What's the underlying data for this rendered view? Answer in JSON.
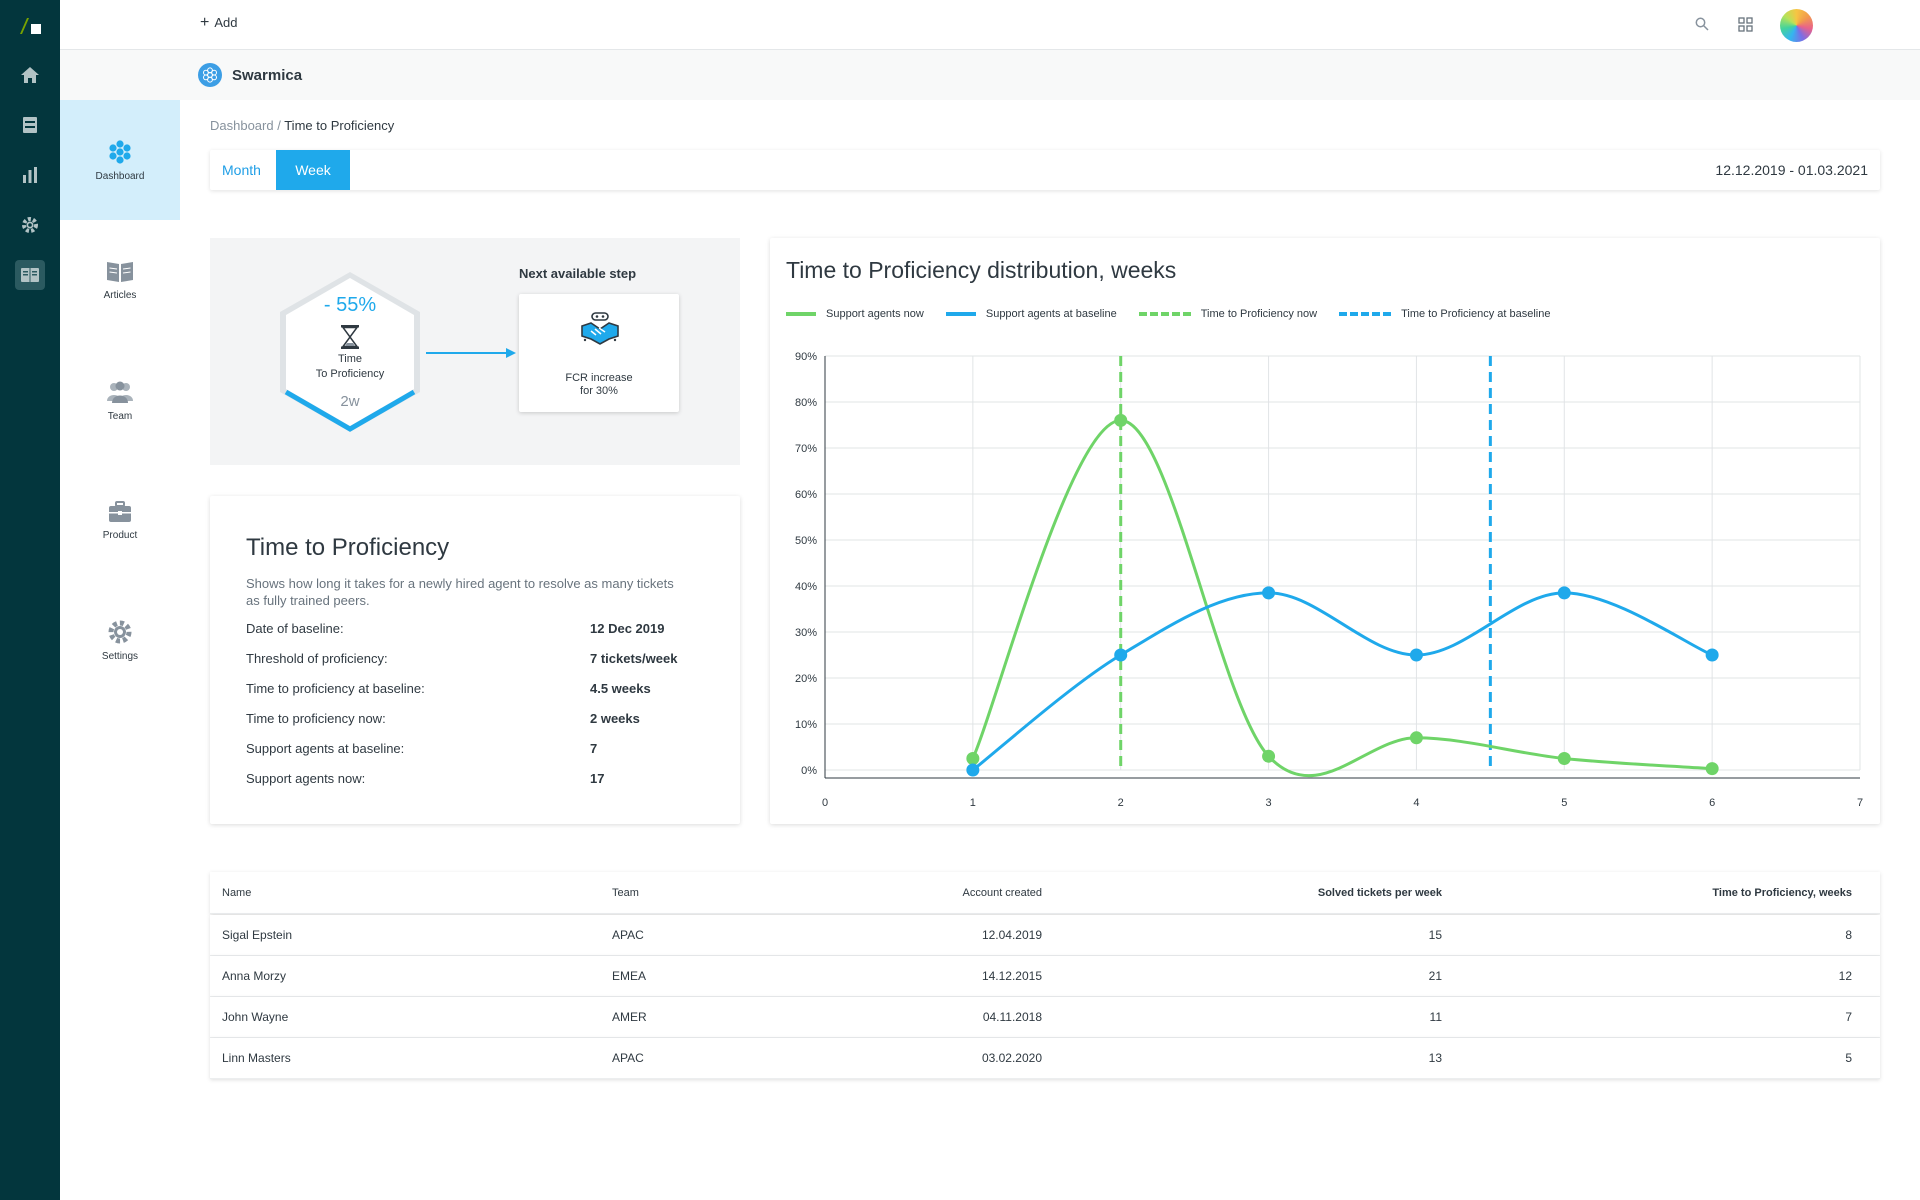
{
  "topbar": {
    "add_label": "Add"
  },
  "brand": {
    "name": "Swarmica"
  },
  "rail": {
    "icons": [
      "home-icon",
      "inbox-icon",
      "reports-icon",
      "admin-gear-icon",
      "guide-book-icon"
    ]
  },
  "nav": {
    "items": [
      {
        "label": "Dashboard",
        "icon": "hexagon-cluster-icon",
        "active": true
      },
      {
        "label": "Articles",
        "icon": "book-icon"
      },
      {
        "label": "Team",
        "icon": "team-icon"
      },
      {
        "label": "Product",
        "icon": "briefcase-icon"
      },
      {
        "label": "Settings",
        "icon": "gear-icon"
      }
    ]
  },
  "breadcrumb": {
    "root": "Dashboard",
    "separator": " / ",
    "current": "Time to Proficiency"
  },
  "period": {
    "month": "Month",
    "week": "Week",
    "selected": "Week",
    "date_range": "12.12.2019 - 01.03.2021"
  },
  "step": {
    "percent": "- 55%",
    "title_line1": "Time",
    "title_line2": "To Proficiency",
    "value": "2w",
    "next_label": "Next available step",
    "next_text_line1": "FCR increase",
    "next_text_line2": "for 30%"
  },
  "info": {
    "title": "Time to Proficiency",
    "description": "Shows how long it takes for a newly hired agent to resolve as many tickets as fully trained peers.",
    "rows": [
      {
        "key": "Date of baseline:",
        "value": "12 Dec 2019"
      },
      {
        "key": "Threshold of proficiency:",
        "value": "7 tickets/week"
      },
      {
        "key": "Time to proficiency at baseline:",
        "value": "4.5 weeks"
      },
      {
        "key": "Time to proficiency now:",
        "value": "2 weeks"
      },
      {
        "key": "Support agents at baseline:",
        "value": "7"
      },
      {
        "key": "Support agents now:",
        "value": "17"
      }
    ]
  },
  "colors": {
    "green": "#6fd468",
    "blue": "#1fa9eb"
  },
  "chart_data": {
    "type": "line",
    "title": "Time to Proficiency distribution, weeks",
    "xlim": [
      0,
      7
    ],
    "ylim": [
      0,
      90
    ],
    "x_ticks": [
      0,
      1,
      2,
      3,
      4,
      5,
      6,
      7
    ],
    "y_ticks": [
      "0%",
      "10%",
      "20%",
      "30%",
      "40%",
      "50%",
      "60%",
      "70%",
      "80%",
      "90%"
    ],
    "grid": true,
    "legend_position": "top-left",
    "series": [
      {
        "name": "Support agents now",
        "color": "#6fd468",
        "x": [
          1,
          2,
          3,
          4,
          5,
          6
        ],
        "y": [
          2.5,
          76,
          3,
          7,
          2.5,
          0.3
        ]
      },
      {
        "name": "Support agents at baseline",
        "color": "#1fa9eb",
        "x": [
          1,
          2,
          3,
          4,
          5,
          6
        ],
        "y": [
          0,
          25,
          38.5,
          25,
          38.5,
          25
        ]
      }
    ],
    "reference_lines": [
      {
        "name": "Time to Proficiency now",
        "color": "#6fd468",
        "x": 2,
        "style": "dashed"
      },
      {
        "name": "Time to Proficiency at baseline",
        "color": "#1fa9eb",
        "x": 4.5,
        "style": "dashed"
      }
    ]
  },
  "table": {
    "columns": [
      "Name",
      "Team",
      "Account created",
      "Solved tickets per week",
      "Time to Proficiency, weeks"
    ],
    "rows": [
      [
        "Sigal Epstein",
        "APAC",
        "12.04.2019",
        "15",
        "8"
      ],
      [
        "Anna Morzy",
        "EMEA",
        "14.12.2015",
        "21",
        "12"
      ],
      [
        "John Wayne",
        "AMER",
        "04.11.2018",
        "11",
        "7"
      ],
      [
        "Linn Masters",
        "APAC",
        "03.02.2020",
        "13",
        "5"
      ]
    ]
  }
}
